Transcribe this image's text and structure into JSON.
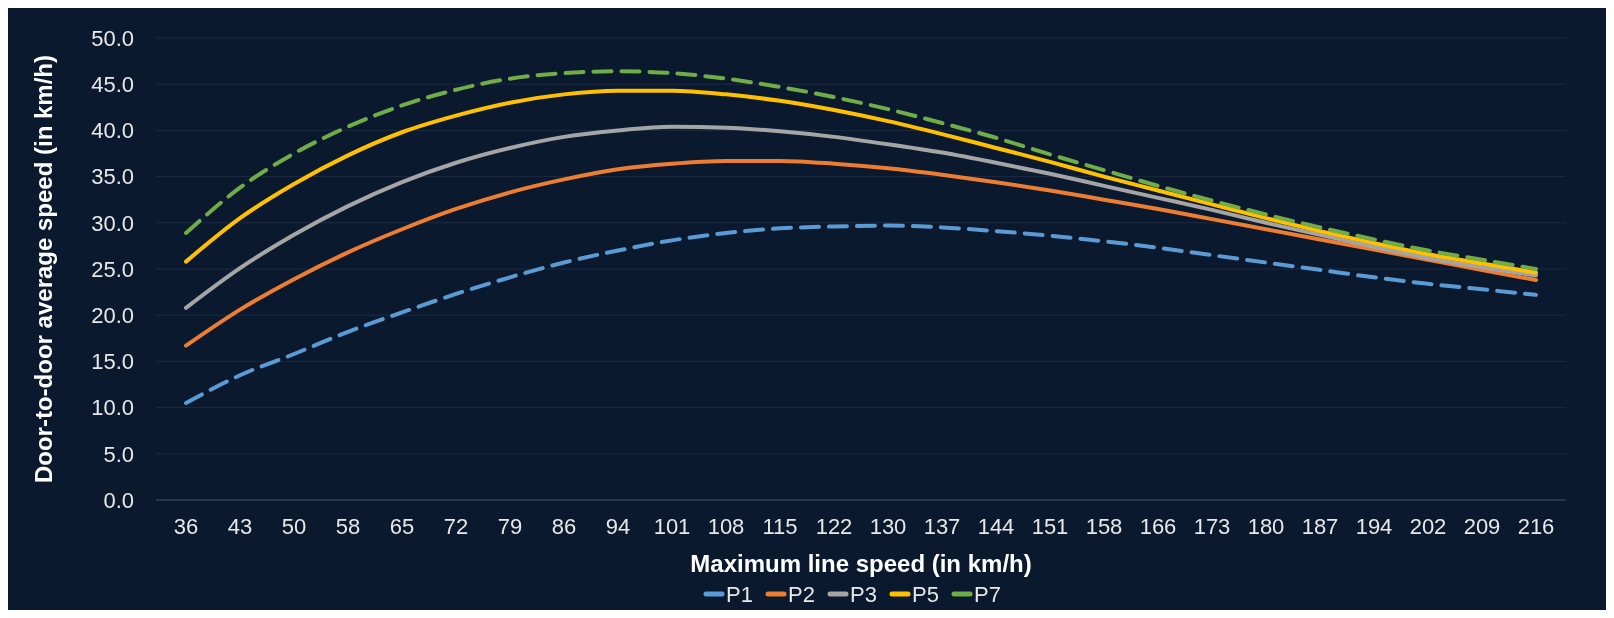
{
  "chart_data": {
    "type": "line",
    "xlabel": "Maximum line speed (in km/h)",
    "ylabel": "Door-to-door average speed (in km/h)",
    "categories": [
      "36",
      "43",
      "50",
      "58",
      "65",
      "72",
      "79",
      "86",
      "94",
      "101",
      "108",
      "115",
      "122",
      "130",
      "137",
      "144",
      "151",
      "158",
      "166",
      "173",
      "180",
      "187",
      "194",
      "202",
      "209",
      "216"
    ],
    "ylim": [
      0,
      50
    ],
    "yticks": [
      {
        "value": 0,
        "label": "0.0"
      },
      {
        "value": 5,
        "label": "5.0"
      },
      {
        "value": 10,
        "label": "10.0"
      },
      {
        "value": 15,
        "label": "15.0"
      },
      {
        "value": 20,
        "label": "20.0"
      },
      {
        "value": 25,
        "label": "25.0"
      },
      {
        "value": 30,
        "label": "30.0"
      },
      {
        "value": 35,
        "label": "35.0"
      },
      {
        "value": 40,
        "label": "40.0"
      },
      {
        "value": 45,
        "label": "45.0"
      },
      {
        "value": 50,
        "label": "50.0"
      }
    ],
    "grid": "y",
    "legend": "bottom",
    "marker": "none",
    "series": [
      {
        "name": "P1",
        "color": "#5b9bd5",
        "line_style": "dashed",
        "values": [
          10.5,
          13.5,
          15.8,
          18.2,
          20.3,
          22.3,
          24.1,
          25.7,
          27.0,
          28.1,
          28.9,
          29.4,
          29.6,
          29.7,
          29.5,
          29.1,
          28.6,
          28.0,
          27.3,
          26.5,
          25.7,
          24.9,
          24.1,
          23.4,
          22.8,
          22.2
        ]
      },
      {
        "name": "P2",
        "color": "#ed7d31",
        "line_style": "solid",
        "values": [
          16.7,
          20.6,
          23.9,
          26.8,
          29.3,
          31.5,
          33.3,
          34.7,
          35.8,
          36.4,
          36.7,
          36.7,
          36.4,
          35.9,
          35.2,
          34.4,
          33.5,
          32.5,
          31.5,
          30.4,
          29.3,
          28.2,
          27.1,
          26.0,
          24.9,
          23.8
        ]
      },
      {
        "name": "P3",
        "color": "#a5a5a5",
        "line_style": "solid",
        "values": [
          20.8,
          25.1,
          28.7,
          31.8,
          34.4,
          36.5,
          38.1,
          39.3,
          40.0,
          40.4,
          40.3,
          39.9,
          39.3,
          38.5,
          37.6,
          36.5,
          35.3,
          34.0,
          32.7,
          31.4,
          30.0,
          28.7,
          27.4,
          26.2,
          25.2,
          24.3
        ]
      },
      {
        "name": "P5",
        "color": "#ffc000",
        "line_style": "solid",
        "values": [
          25.8,
          30.5,
          34.2,
          37.3,
          39.8,
          41.6,
          43.0,
          43.9,
          44.3,
          44.3,
          43.9,
          43.2,
          42.2,
          41.0,
          39.6,
          38.1,
          36.6,
          35.0,
          33.5,
          32.0,
          30.5,
          29.1,
          27.8,
          26.6,
          25.6,
          24.6
        ]
      },
      {
        "name": "P7",
        "color": "#70ad47",
        "line_style": "dashed",
        "values": [
          28.9,
          33.8,
          37.5,
          40.4,
          42.7,
          44.4,
          45.6,
          46.2,
          46.4,
          46.2,
          45.6,
          44.7,
          43.6,
          42.3,
          40.8,
          39.2,
          37.4,
          35.7,
          34.0,
          32.4,
          30.9,
          29.5,
          28.2,
          27.0,
          26.0,
          25.0
        ]
      }
    ]
  }
}
